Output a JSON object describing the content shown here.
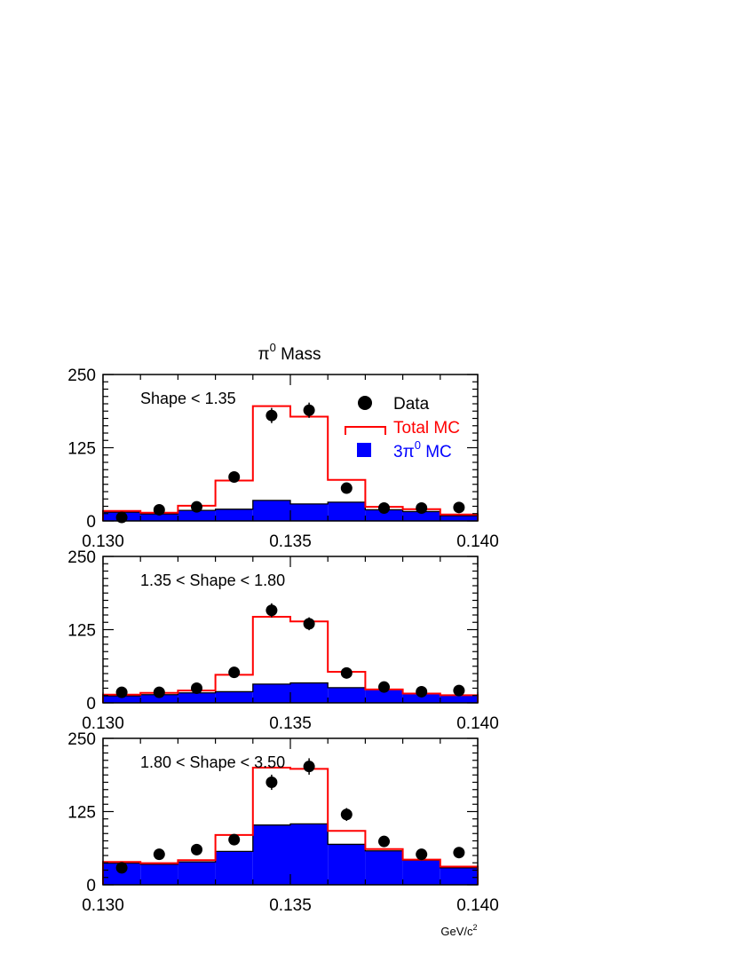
{
  "title": "π⁰ Mass",
  "title_main": "π",
  "title_sup": "0",
  "title_rest": " Mass",
  "colors": {
    "data": "#000000",
    "total_mc": "#ff0000",
    "bkg_mc": "#0000ff",
    "axis": "#000000"
  },
  "legend": {
    "data_label": "Data",
    "total_label": "Total MC",
    "bkg_label_main": "3π",
    "bkg_label_sup": "0",
    "bkg_label_rest": " MC",
    "placement": "top-right of first panel"
  },
  "x_unit_main": "GeV/c",
  "x_unit_sup": "2",
  "chart_data": [
    {
      "type": "bar",
      "annotation": "Shape < 1.35",
      "xlim": [
        0.13,
        0.14
      ],
      "ylim": [
        0,
        250
      ],
      "xticks": [
        "0.130",
        "0.135",
        "0.140"
      ],
      "yticks": [
        "0",
        "125",
        "250"
      ],
      "bin_edges": [
        0.13,
        0.131,
        0.132,
        0.133,
        0.134,
        0.135,
        0.136,
        0.137,
        0.138,
        0.139,
        0.14
      ],
      "series": [
        {
          "name": "Data",
          "style": "points",
          "x": [
            0.1305,
            0.1315,
            0.1325,
            0.1335,
            0.1345,
            0.1355,
            0.1365,
            0.1375,
            0.1385,
            0.1395
          ],
          "values": [
            6,
            19,
            24,
            75,
            180,
            189,
            56,
            22,
            22,
            23
          ],
          "errors": [
            3,
            4,
            5,
            8,
            13,
            13,
            7,
            4,
            4,
            4
          ]
        },
        {
          "name": "Total MC",
          "style": "step",
          "values": [
            17,
            14,
            26,
            69,
            196,
            178,
            70,
            24,
            20,
            11
          ]
        },
        {
          "name": "3π0 MC",
          "style": "filled",
          "values": [
            15,
            12,
            18,
            20,
            35,
            29,
            32,
            19,
            16,
            9
          ]
        }
      ]
    },
    {
      "type": "bar",
      "annotation": "1.35 < Shape < 1.80",
      "xlim": [
        0.13,
        0.14
      ],
      "ylim": [
        0,
        250
      ],
      "xticks": [
        "0.130",
        "0.135",
        "0.140"
      ],
      "yticks": [
        "0",
        "125",
        "250"
      ],
      "bin_edges": [
        0.13,
        0.131,
        0.132,
        0.133,
        0.134,
        0.135,
        0.136,
        0.137,
        0.138,
        0.139,
        0.14
      ],
      "series": [
        {
          "name": "Data",
          "style": "points",
          "x": [
            0.1305,
            0.1315,
            0.1325,
            0.1335,
            0.1345,
            0.1355,
            0.1365,
            0.1375,
            0.1385,
            0.1395
          ],
          "values": [
            18,
            18,
            25,
            52,
            158,
            135,
            51,
            27,
            19,
            21
          ],
          "errors": [
            4,
            4,
            5,
            7,
            12,
            11,
            7,
            5,
            4,
            4
          ]
        },
        {
          "name": "Total MC",
          "style": "step",
          "values": [
            14,
            17,
            21,
            48,
            147,
            139,
            53,
            23,
            16,
            13
          ]
        },
        {
          "name": "3π0 MC",
          "style": "filled",
          "values": [
            12,
            14,
            17,
            19,
            32,
            34,
            26,
            23,
            16,
            13
          ]
        }
      ]
    },
    {
      "type": "bar",
      "annotation": "1.80 < Shape < 3.50",
      "xlim": [
        0.13,
        0.14
      ],
      "ylim": [
        0,
        250
      ],
      "xticks": [
        "0.130",
        "0.135",
        "0.140"
      ],
      "yticks": [
        "0",
        "125",
        "250"
      ],
      "bin_edges": [
        0.13,
        0.131,
        0.132,
        0.133,
        0.134,
        0.135,
        0.136,
        0.137,
        0.138,
        0.139,
        0.14
      ],
      "series": [
        {
          "name": "Data",
          "style": "points",
          "x": [
            0.1305,
            0.1315,
            0.1325,
            0.1335,
            0.1345,
            0.1355,
            0.1365,
            0.1375,
            0.1385,
            0.1395
          ],
          "values": [
            29,
            52,
            60,
            77,
            175,
            202,
            120,
            74,
            52,
            55
          ],
          "errors": [
            5,
            7,
            8,
            9,
            13,
            14,
            11,
            9,
            7,
            7
          ]
        },
        {
          "name": "Total MC",
          "style": "step",
          "values": [
            39,
            37,
            42,
            85,
            200,
            198,
            92,
            61,
            43,
            31
          ]
        },
        {
          "name": "3π0 MC",
          "style": "filled",
          "values": [
            37,
            35,
            39,
            57,
            102,
            104,
            69,
            58,
            42,
            29
          ]
        }
      ]
    }
  ]
}
